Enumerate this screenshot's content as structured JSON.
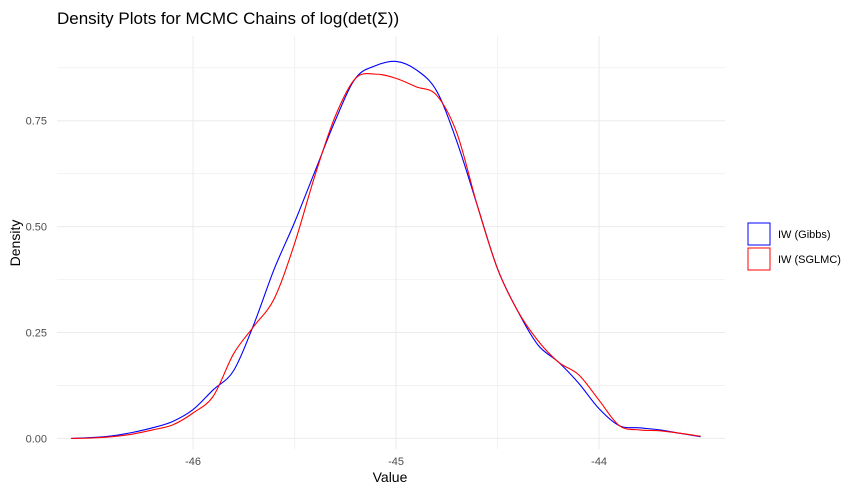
{
  "chart_data": {
    "type": "line",
    "title": "Density Plots for MCMC Chains of log(det(Σ))",
    "xlabel": "Value",
    "ylabel": "Density",
    "xlim": [
      -46.67,
      -43.38
    ],
    "ylim": [
      -0.025,
      0.95
    ],
    "x_ticks": [
      -46,
      -45,
      -44
    ],
    "x_tick_labels": [
      "-46",
      "-45",
      "-44"
    ],
    "y_ticks": [
      0,
      0.25,
      0.5,
      0.75
    ],
    "y_tick_labels": [
      "0.00",
      "0.25",
      "0.50",
      "0.75"
    ],
    "grid": true,
    "legend_position": "right",
    "series": [
      {
        "name": "IW (Gibbs)",
        "color": "#0000FF",
        "x": [
          -46.6,
          -46.5,
          -46.4,
          -46.3,
          -46.2,
          -46.1,
          -46.0,
          -45.9,
          -45.8,
          -45.7,
          -45.6,
          -45.5,
          -45.4,
          -45.3,
          -45.2,
          -45.1,
          -45.0,
          -44.9,
          -44.8,
          -44.7,
          -44.6,
          -44.5,
          -44.4,
          -44.3,
          -44.2,
          -44.1,
          -44.0,
          -43.9,
          -43.8,
          -43.7,
          -43.6,
          -43.5
        ],
        "y": [
          0.0,
          0.002,
          0.006,
          0.014,
          0.025,
          0.04,
          0.068,
          0.115,
          0.16,
          0.27,
          0.4,
          0.51,
          0.63,
          0.75,
          0.85,
          0.88,
          0.89,
          0.87,
          0.82,
          0.7,
          0.55,
          0.4,
          0.3,
          0.22,
          0.18,
          0.13,
          0.07,
          0.03,
          0.025,
          0.02,
          0.012,
          0.004
        ]
      },
      {
        "name": "IW (SGLMC)",
        "color": "#FF0000",
        "x": [
          -46.6,
          -46.5,
          -46.4,
          -46.3,
          -46.2,
          -46.1,
          -46.0,
          -45.9,
          -45.8,
          -45.7,
          -45.6,
          -45.5,
          -45.4,
          -45.3,
          -45.2,
          -45.1,
          -45.0,
          -44.9,
          -44.8,
          -44.7,
          -44.6,
          -44.5,
          -44.4,
          -44.3,
          -44.2,
          -44.1,
          -44.0,
          -43.9,
          -43.8,
          -43.7,
          -43.6,
          -43.5
        ],
        "y": [
          0.0,
          0.001,
          0.004,
          0.01,
          0.02,
          0.032,
          0.06,
          0.1,
          0.2,
          0.265,
          0.33,
          0.46,
          0.62,
          0.76,
          0.85,
          0.86,
          0.85,
          0.83,
          0.81,
          0.72,
          0.55,
          0.4,
          0.3,
          0.23,
          0.18,
          0.15,
          0.09,
          0.03,
          0.02,
          0.018,
          0.012,
          0.005
        ]
      }
    ]
  }
}
